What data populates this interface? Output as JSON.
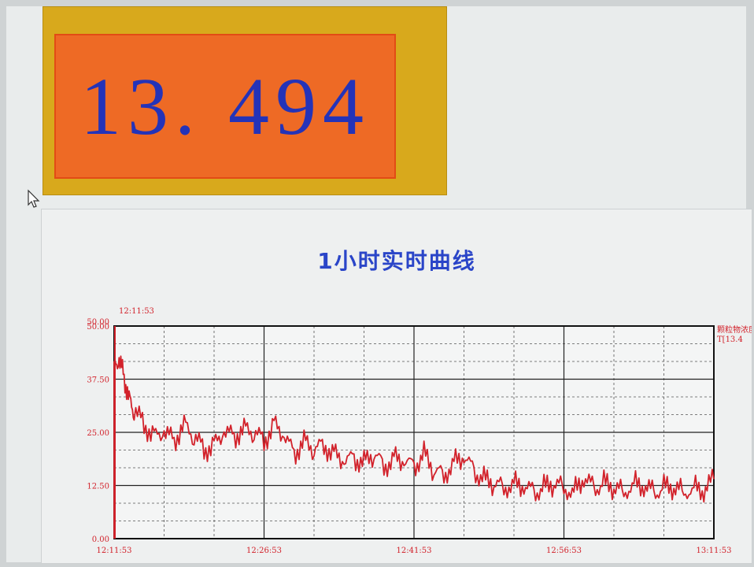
{
  "panel": {
    "title": "",
    "value": "13. 494",
    "colors": {
      "panel": "#d8a91c",
      "box": "#ee6a25",
      "value": "#2433b8"
    }
  },
  "cursor": {
    "icon": "mouse-pointer-icon"
  },
  "chart_panel": {
    "title": "1小时实时曲线",
    "start_label": "12:11:53",
    "top_label": "50.00",
    "right_legend": [
      "颗粒物浓度",
      "T[13.4"
    ]
  },
  "chart_data": {
    "type": "line",
    "title": "1小时实时曲线",
    "xlabel": "",
    "ylabel": "",
    "ylim": [
      0,
      50
    ],
    "yticks": [
      "0.00",
      "12.50",
      "25.00",
      "37.50",
      "50.00"
    ],
    "xticks": [
      "12:11:53",
      "12:26:53",
      "12:41:53",
      "12:56:53",
      "13:11:53"
    ],
    "grid": true,
    "line_color": "#d2222b",
    "series": [
      {
        "x_minutes": [
          0,
          0.5,
          1,
          1.5,
          2,
          3,
          4,
          5,
          6,
          7,
          8,
          9,
          10,
          11,
          12,
          13,
          14,
          15,
          16,
          17,
          18,
          19,
          20,
          21,
          22,
          23,
          24,
          25,
          26,
          27,
          28,
          29,
          30,
          31,
          32,
          33,
          34,
          35,
          36,
          37,
          38,
          39,
          40,
          41,
          42,
          43,
          44,
          45,
          46,
          47,
          48,
          49,
          50,
          51,
          52,
          53,
          54,
          55,
          56,
          57,
          58,
          59,
          60
        ],
        "values": [
          40,
          42,
          38,
          33,
          30,
          27,
          24,
          25,
          23,
          27,
          24,
          21,
          22,
          25,
          24,
          26,
          25,
          23,
          27,
          24,
          20,
          23,
          21,
          22,
          20,
          18,
          19,
          18,
          20,
          17,
          19,
          18,
          17,
          20,
          16,
          15,
          18,
          19,
          16,
          14,
          13,
          12,
          13,
          12,
          11,
          12,
          13,
          12,
          11,
          14,
          12,
          13,
          12,
          11,
          13,
          12,
          11,
          12,
          12,
          11,
          12,
          11,
          14
        ]
      }
    ]
  }
}
